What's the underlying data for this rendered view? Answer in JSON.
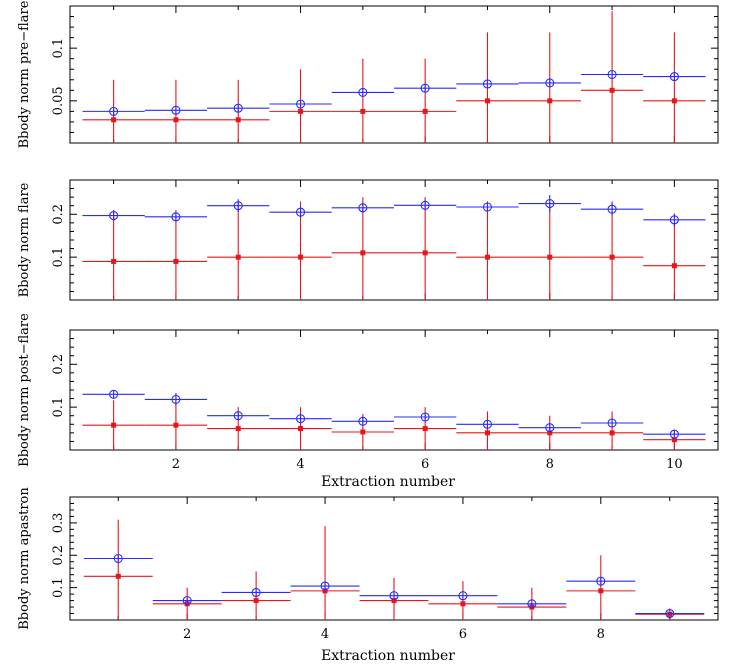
{
  "chart_data": [
    {
      "type": "scatter",
      "ylabel": "Bbody norm pre−flare",
      "xlabel": "",
      "xlim": [
        0.3,
        10.7
      ],
      "ylim": [
        0.01,
        0.14
      ],
      "xticks": [
        2,
        4,
        6,
        8,
        10
      ],
      "xtick_labels": [],
      "yticks": [
        0.05,
        0.1
      ],
      "ytick_labels": [
        "0.05",
        "0.1"
      ],
      "series": [
        {
          "name": "blue-open-circle",
          "color": "#2a2aff",
          "marker": "circle-open",
          "x": [
            1,
            2,
            3,
            4,
            5,
            6,
            7,
            8,
            9,
            10
          ],
          "y": [
            0.04,
            0.041,
            0.043,
            0.047,
            0.058,
            0.062,
            0.066,
            0.067,
            0.075,
            0.073
          ],
          "err": [
            0.003,
            0.003,
            0.003,
            0.003,
            0.003,
            0.003,
            0.003,
            0.003,
            0.004,
            0.004
          ]
        },
        {
          "name": "red-filled-square",
          "color": "#e8151b",
          "marker": "square-filled",
          "x": [
            1,
            2,
            3,
            4,
            5,
            6,
            7,
            8,
            9,
            10
          ],
          "y": [
            0.032,
            0.032,
            0.032,
            0.04,
            0.04,
            0.04,
            0.05,
            0.05,
            0.06,
            0.05
          ],
          "err": [
            0.038,
            0.038,
            0.038,
            0.04,
            0.05,
            0.05,
            0.065,
            0.065,
            0.075,
            0.065
          ]
        }
      ]
    },
    {
      "type": "scatter",
      "ylabel": "Bbody norm flare",
      "xlabel": "",
      "xlim": [
        0.3,
        10.7
      ],
      "ylim": [
        0.0,
        0.28
      ],
      "xticks": [
        2,
        4,
        6,
        8,
        10
      ],
      "xtick_labels": [],
      "yticks": [
        0.1,
        0.2
      ],
      "ytick_labels": [
        "0.1",
        "0.2"
      ],
      "series": [
        {
          "name": "blue-open-circle",
          "color": "#2a2aff",
          "marker": "circle-open",
          "x": [
            1,
            2,
            3,
            4,
            5,
            6,
            7,
            8,
            9,
            10
          ],
          "y": [
            0.197,
            0.194,
            0.22,
            0.205,
            0.215,
            0.221,
            0.217,
            0.225,
            0.212,
            0.187
          ],
          "err": [
            0.012,
            0.01,
            0.015,
            0.015,
            0.012,
            0.012,
            0.012,
            0.02,
            0.015,
            0.015
          ]
        },
        {
          "name": "red-filled-square",
          "color": "#e8151b",
          "marker": "square-filled",
          "x": [
            1,
            2,
            3,
            4,
            5,
            6,
            7,
            8,
            9,
            10
          ],
          "y": [
            0.09,
            0.09,
            0.1,
            0.1,
            0.11,
            0.11,
            0.1,
            0.1,
            0.1,
            0.08
          ],
          "err": [
            0.12,
            0.12,
            0.13,
            0.13,
            0.13,
            0.13,
            0.13,
            0.13,
            0.13,
            0.1
          ]
        }
      ]
    },
    {
      "type": "scatter",
      "ylabel": "Bbody norm post−flare",
      "xlabel": "Extraction number",
      "xlim": [
        0.3,
        10.7
      ],
      "ylim": [
        0.0,
        0.28
      ],
      "xticks": [
        2,
        4,
        6,
        8,
        10
      ],
      "xtick_labels": [
        "2",
        "4",
        "6",
        "8",
        "10"
      ],
      "yticks": [
        0.1,
        0.2
      ],
      "ytick_labels": [
        "0.1",
        "0.2"
      ],
      "series": [
        {
          "name": "blue-open-circle",
          "color": "#2a2aff",
          "marker": "circle-open",
          "x": [
            1,
            2,
            3,
            4,
            5,
            6,
            7,
            8,
            9,
            10
          ],
          "y": [
            0.13,
            0.118,
            0.08,
            0.073,
            0.067,
            0.077,
            0.06,
            0.052,
            0.063,
            0.037
          ],
          "err": [
            0.01,
            0.015,
            0.01,
            0.01,
            0.01,
            0.01,
            0.008,
            0.008,
            0.01,
            0.006
          ]
        },
        {
          "name": "red-filled-square",
          "color": "#e8151b",
          "marker": "square-filled",
          "x": [
            1,
            2,
            3,
            4,
            5,
            6,
            7,
            8,
            9,
            10
          ],
          "y": [
            0.058,
            0.058,
            0.05,
            0.05,
            0.042,
            0.05,
            0.04,
            0.04,
            0.04,
            0.024
          ],
          "err": [
            0.058,
            0.058,
            0.05,
            0.05,
            0.042,
            0.05,
            0.05,
            0.04,
            0.05,
            0.024
          ]
        }
      ]
    },
    {
      "type": "scatter",
      "ylabel": "Bbody norm apastron",
      "xlabel": "Extraction number",
      "xlim": [
        0.3,
        9.7
      ],
      "ylim": [
        0.0,
        0.38
      ],
      "xticks": [
        2,
        4,
        6,
        8
      ],
      "xtick_labels": [
        "2",
        "4",
        "6",
        "8"
      ],
      "yticks": [
        0.1,
        0.2,
        0.3
      ],
      "ytick_labels": [
        "0.1",
        "0.2",
        "0.3"
      ],
      "series": [
        {
          "name": "blue-open-circle",
          "color": "#2a2aff",
          "marker": "circle-open",
          "x": [
            1,
            2,
            3,
            4,
            5,
            6,
            7,
            8,
            9
          ],
          "y": [
            0.19,
            0.06,
            0.085,
            0.105,
            0.075,
            0.075,
            0.05,
            0.12,
            0.02
          ],
          "err": [
            0.01,
            0.008,
            0.01,
            0.01,
            0.008,
            0.008,
            0.006,
            0.01,
            0.004
          ]
        },
        {
          "name": "red-filled-square",
          "color": "#e8151b",
          "marker": "square-filled",
          "x": [
            1,
            2,
            3,
            4,
            5,
            6,
            7,
            8,
            9
          ],
          "y": [
            0.135,
            0.05,
            0.06,
            0.09,
            0.06,
            0.05,
            0.04,
            0.09,
            0.018
          ],
          "err": [
            0.175,
            0.05,
            0.09,
            0.2,
            0.07,
            0.07,
            0.06,
            0.11,
            0.018
          ]
        }
      ]
    }
  ]
}
